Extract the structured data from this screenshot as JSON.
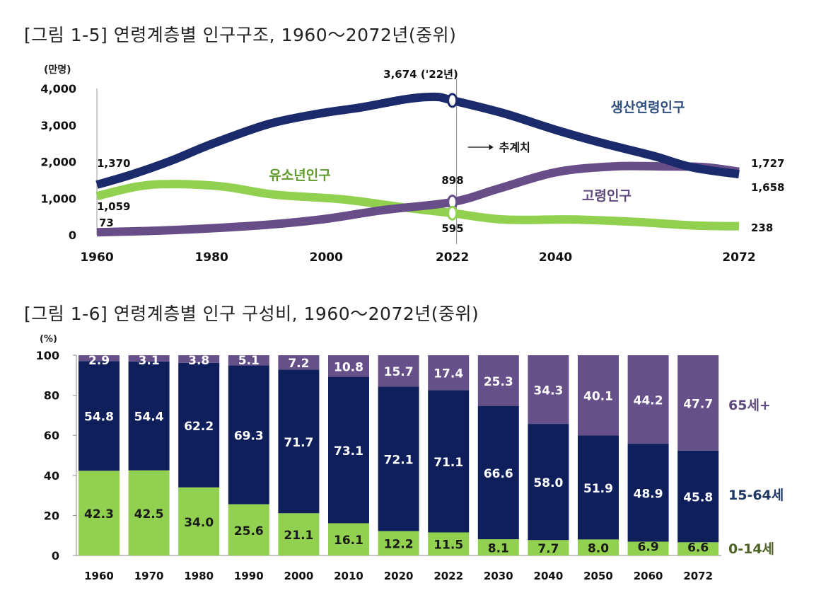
{
  "chart_data": [
    {
      "type": "line",
      "title": "[그림 1-5] 연령계층별 인구구조, 1960～2072년(중위)",
      "ylabel": "(만명)",
      "ylim": [
        0,
        4000
      ],
      "yticks": [
        "0",
        "1,000",
        "2,000",
        "3,000",
        "4,000"
      ],
      "xlim": [
        1960,
        2072
      ],
      "xticks": [
        "1960",
        "1980",
        "2000",
        "2022",
        "2040",
        "2072"
      ],
      "grid": false,
      "projection_marker": {
        "year": 2022,
        "label": "추계치"
      },
      "series": [
        {
          "name": "생산연령인구",
          "color": "#1b2a6b",
          "label_color": "#2f4f7f",
          "x": [
            1960,
            1966,
            1973,
            1980,
            1990,
            1999,
            2006,
            2014,
            2019,
            2022,
            2031,
            2040,
            2048,
            2057,
            2064,
            2072
          ],
          "y": [
            1370,
            1645,
            2030,
            2480,
            3030,
            3320,
            3480,
            3710,
            3770,
            3674,
            3320,
            2870,
            2515,
            2160,
            1840,
            1658
          ]
        },
        {
          "name": "유소년인구",
          "color": "#92d050",
          "label_color": "#5f9a2c",
          "x": [
            1960,
            1967,
            1973,
            1982,
            1991,
            2003,
            2014,
            2022,
            2031,
            2043,
            2054,
            2064,
            2072
          ],
          "y": [
            1059,
            1320,
            1390,
            1320,
            1100,
            970,
            740,
            595,
            420,
            420,
            355,
            258,
            238
          ]
        },
        {
          "name": "고령인구",
          "color": "#674e88",
          "label_color": "#5e4a80",
          "x": [
            1960,
            1973,
            1988,
            1999,
            2010,
            2022,
            2030,
            2040,
            2050,
            2059,
            2066,
            2072
          ],
          "y": [
            73,
            130,
            258,
            420,
            680,
            898,
            1260,
            1710,
            1870,
            1870,
            1850,
            1727
          ]
        }
      ],
      "annotations": [
        {
          "text": "3,674 ('22년)"
        },
        {
          "text": "1,370"
        },
        {
          "text": "1,059"
        },
        {
          "text": "73"
        },
        {
          "text": "898"
        },
        {
          "text": "595"
        },
        {
          "text": "1,727"
        },
        {
          "text": "1,658"
        },
        {
          "text": "238"
        }
      ]
    },
    {
      "type": "bar",
      "stacked": true,
      "title": "[그림 1-6] 연령계층별 인구 구성비, 1960～2072년(중위)",
      "ylabel": "(%)",
      "ylim": [
        0,
        100
      ],
      "yticks": [
        "0",
        "20",
        "40",
        "60",
        "80",
        "100"
      ],
      "categories": [
        "1960",
        "1970",
        "1980",
        "1990",
        "2000",
        "2010",
        "2020",
        "2022",
        "2030",
        "2040",
        "2050",
        "2060",
        "2072"
      ],
      "grid": false,
      "legend": "right",
      "series": [
        {
          "name": "0-14세",
          "color": "#92d050",
          "legend_color": "#4f6228",
          "values": [
            42.3,
            42.5,
            34.0,
            25.6,
            21.1,
            16.1,
            12.2,
            11.5,
            8.1,
            7.7,
            8.0,
            6.9,
            6.6
          ]
        },
        {
          "name": "15-64세",
          "color": "#0f1f5c",
          "legend_color": "#1f3864",
          "values": [
            54.8,
            54.4,
            62.2,
            69.3,
            71.7,
            73.1,
            72.1,
            71.1,
            66.6,
            58.0,
            51.9,
            48.9,
            45.8
          ]
        },
        {
          "name": "65세+",
          "color": "#66508a",
          "legend_color": "#5e4a80",
          "values": [
            2.9,
            3.1,
            3.8,
            5.1,
            7.2,
            10.8,
            15.7,
            17.4,
            25.3,
            34.3,
            40.1,
            44.2,
            47.7
          ]
        }
      ]
    }
  ]
}
